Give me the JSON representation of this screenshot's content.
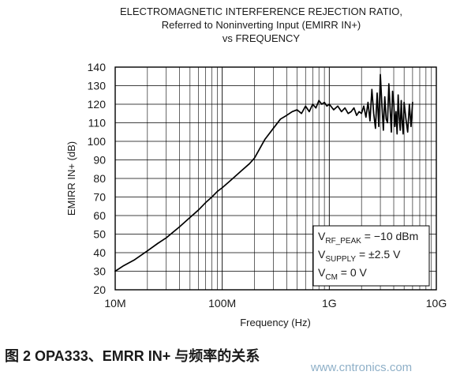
{
  "chart_data": {
    "type": "line",
    "title": [
      "ELECTROMAGNETIC INTERFERENCE REJECTION RATIO,",
      "Referred to Noninverting Input (EMIRR IN+)",
      "vs FREQUENCY"
    ],
    "xlabel": "Frequency (Hz)",
    "ylabel": "EMIRR IN+ (dB)",
    "xscale": "log",
    "xlim": [
      10000000,
      10000000000
    ],
    "ylim": [
      20,
      140
    ],
    "grid": true,
    "x_ticks": [
      {
        "value": 10000000,
        "label": "10M"
      },
      {
        "value": 100000000,
        "label": "100M"
      },
      {
        "value": 1000000000,
        "label": "1G"
      },
      {
        "value": 10000000000,
        "label": "10G"
      }
    ],
    "y_ticks": [
      20,
      30,
      40,
      50,
      60,
      70,
      80,
      90,
      100,
      110,
      120,
      130,
      140
    ],
    "legend_box": {
      "placement": "bottom-right",
      "lines": [
        {
          "prefix": "V",
          "sub": "RF_PEAK",
          "suffix": " = −10 dBm"
        },
        {
          "prefix": "V",
          "sub": "SUPPLY",
          "suffix": " = ±2.5 V"
        },
        {
          "prefix": "V",
          "sub": "CM",
          "suffix": " = 0 V"
        }
      ]
    },
    "series": [
      {
        "color": "#000000",
        "x": [
          10000000,
          12000000,
          15000000,
          20000000,
          25000000,
          30000000,
          40000000,
          50000000,
          60000000,
          70000000,
          80000000,
          90000000,
          100000000,
          120000000,
          150000000,
          180000000,
          200000000,
          250000000,
          300000000,
          350000000,
          400000000,
          450000000,
          500000000,
          550000000,
          600000000,
          650000000,
          700000000,
          750000000,
          800000000,
          850000000,
          900000000,
          950000000,
          1000000000,
          1100000000,
          1200000000,
          1300000000,
          1400000000,
          1500000000,
          1600000000,
          1700000000,
          1800000000,
          1900000000,
          2000000000,
          2100000000,
          2200000000,
          2300000000,
          2400000000,
          2500000000,
          2600000000,
          2700000000,
          2800000000,
          2900000000,
          3000000000,
          3100000000,
          3200000000,
          3300000000,
          3400000000,
          3500000000,
          3600000000,
          3700000000,
          3800000000,
          3900000000,
          4000000000,
          4100000000,
          4200000000,
          4300000000,
          4400000000,
          4500000000,
          4600000000,
          4700000000,
          4800000000,
          4900000000,
          5000000000,
          5200000000,
          5400000000,
          5600000000,
          5800000000,
          6000000000
        ],
        "y": [
          30,
          33,
          36,
          41,
          45,
          48,
          54,
          59,
          63,
          67,
          70,
          73,
          75,
          79,
          84,
          88,
          91,
          101,
          107,
          112,
          114,
          116,
          117,
          115,
          119,
          116,
          120,
          118,
          122,
          120,
          121,
          119,
          120,
          117,
          119,
          116,
          118,
          115,
          116,
          118,
          114,
          116,
          115,
          119,
          113,
          121,
          111,
          128,
          115,
          107,
          126,
          108,
          136,
          120,
          106,
          124,
          112,
          110,
          131,
          118,
          105,
          127,
          121,
          108,
          116,
          104,
          125,
          113,
          106,
          122,
          110,
          104,
          121,
          112,
          105,
          120,
          108,
          121
        ]
      }
    ]
  },
  "caption": "图  2 OPA333、EMRR IN+  与频率的关系",
  "watermark": "www.cntronics.com"
}
